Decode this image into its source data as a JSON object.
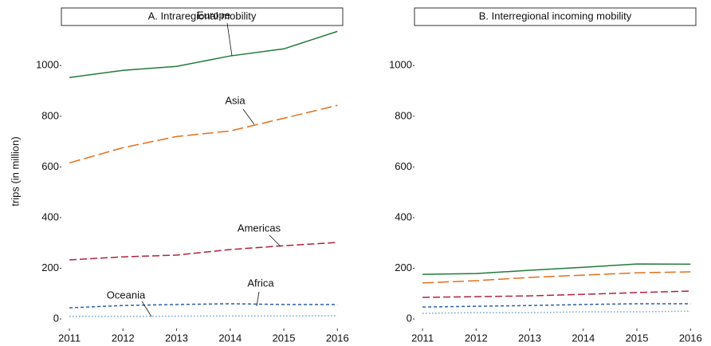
{
  "chart_data": [
    {
      "type": "line",
      "title": "A. Intraregional mobility",
      "ylabel": "trips (in million)",
      "x": [
        2011,
        2012,
        2013,
        2014,
        2015,
        2016
      ],
      "xlim": [
        2010.85,
        2016.1
      ],
      "xticks": [
        2011,
        2012,
        2013,
        2014,
        2015,
        2016
      ],
      "ylim": [
        -47,
        1155
      ],
      "yticks": [
        0,
        200,
        400,
        600,
        800,
        1000
      ],
      "series": [
        {
          "name": "Europe",
          "color": "#237a3b",
          "style": "solid",
          "values": [
            953,
            981,
            997,
            1038,
            1066,
            1135
          ]
        },
        {
          "name": "Asia",
          "color": "#e0701f",
          "style": "longdash",
          "values": [
            616,
            676,
            720,
            742,
            792,
            843
          ]
        },
        {
          "name": "Americas",
          "color": "#b0223f",
          "style": "dash",
          "values": [
            233,
            245,
            252,
            274,
            289,
            302
          ]
        },
        {
          "name": "Africa",
          "color": "#2a5ea6",
          "style": "shortdash",
          "values": [
            44,
            53,
            57,
            60,
            57,
            57
          ]
        },
        {
          "name": "Oceania",
          "color": "#6fa3c4",
          "style": "dot",
          "values": [
            10,
            10,
            11,
            12,
            12,
            13
          ]
        }
      ]
    },
    {
      "type": "line",
      "title": "B. Interregional incoming mobility",
      "x": [
        2011,
        2012,
        2013,
        2014,
        2015,
        2016
      ],
      "xlim": [
        2010.85,
        2016.1
      ],
      "xticks": [
        2011,
        2012,
        2013,
        2014,
        2015,
        2016
      ],
      "ylim": [
        -47,
        1155
      ],
      "yticks": [
        0,
        200,
        400,
        600,
        800,
        1000
      ],
      "series": [
        {
          "color": "#237a3b",
          "style": "solid",
          "values": [
            176,
            179,
            192,
            204,
            217,
            216
          ]
        },
        {
          "color": "#e0701f",
          "style": "longdash",
          "values": [
            142,
            151,
            164,
            173,
            182,
            186
          ]
        },
        {
          "color": "#b0223f",
          "style": "dash",
          "values": [
            85,
            88,
            91,
            97,
            104,
            110
          ]
        },
        {
          "color": "#2a5ea6",
          "style": "shortdash",
          "values": [
            47,
            50,
            53,
            57,
            60,
            60
          ]
        },
        {
          "color": "#6fa3c4",
          "style": "dot",
          "values": [
            22,
            25,
            25,
            28,
            28,
            31
          ]
        }
      ]
    }
  ]
}
